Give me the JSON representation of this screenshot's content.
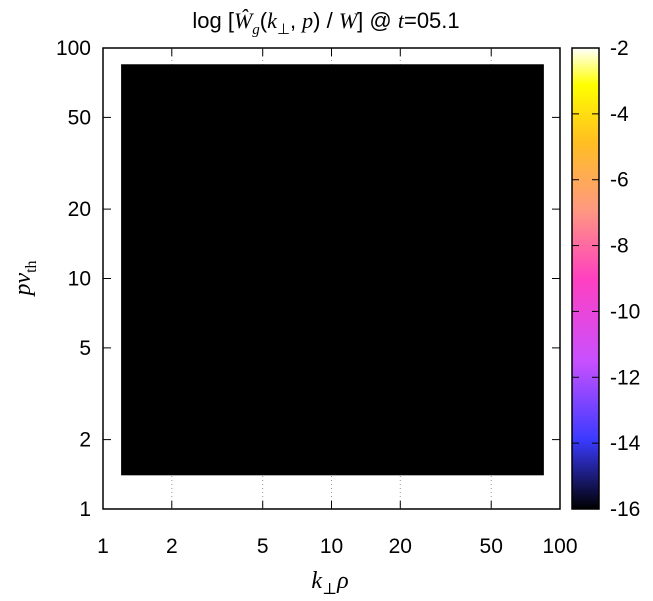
{
  "chart_data": {
    "type": "heatmap",
    "title": {
      "prefix": "log [",
      "w_hat": "Ŵ",
      "w_sub": "g",
      "args_open": "(",
      "k": "k",
      "k_sub": "⊥",
      "comma": ", ",
      "p": "p",
      "args_close": ")",
      "slash": " / ",
      "W": "W",
      "at": "] @ ",
      "t": "t",
      "t_value": "=05.1"
    },
    "xlabel": {
      "main": "k",
      "sub": "⊥",
      "rest": "ρ"
    },
    "ylabel": {
      "main": "pv",
      "sub": "th"
    },
    "x_scale": "log",
    "y_scale": "log",
    "xlim": [
      1,
      100
    ],
    "ylim": [
      1,
      100
    ],
    "x_ticks": [
      "1",
      "2",
      "5",
      "10",
      "20",
      "50",
      "100"
    ],
    "y_ticks": [
      "1",
      "2",
      "5",
      "10",
      "20",
      "50",
      "100"
    ],
    "data_extent": {
      "x": [
        1.2,
        85
      ],
      "y": [
        1.4,
        85
      ]
    },
    "z_range": [
      -16,
      -2
    ],
    "colorbar_ticks": [
      "-2",
      "-4",
      "-6",
      "-8",
      "-10",
      "-12",
      "-14",
      "-16"
    ],
    "colormap": [
      "#000000",
      "#3a3aff",
      "#c850ff",
      "#ff40c0",
      "#ff9980",
      "#ffc020",
      "#ffff00",
      "#ffffff"
    ],
    "field_color": "#000000",
    "value_level": -16
  }
}
